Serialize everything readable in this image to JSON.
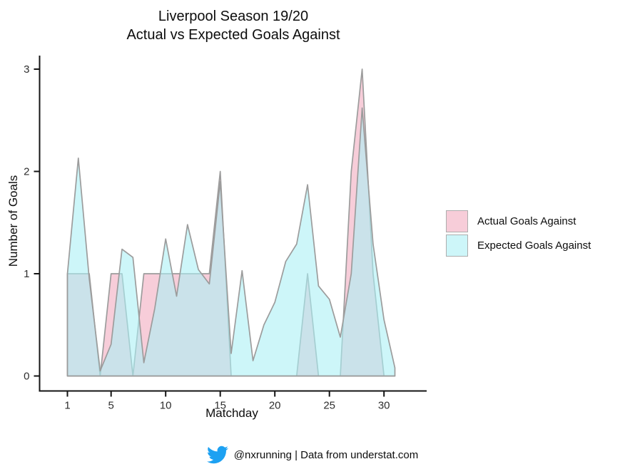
{
  "title": {
    "line1": "Liverpool Season 19/20",
    "line2": "Actual vs Expected Goals Against"
  },
  "legend": {
    "items": [
      {
        "label": "Actual Goals Against",
        "swatch_color": "#F7CDD9",
        "swatch_border": "#ADADAD"
      },
      {
        "label": "Expected Goals Against",
        "swatch_color": "#CDF6F9",
        "swatch_border": "#ADADAD"
      }
    ]
  },
  "footer": {
    "text": "@nxrunning | Data from understat.com",
    "twitter_icon_color": "#1DA1F2"
  },
  "colors": {
    "actual_fill": "#F0A4BA",
    "actual_opacity": 0.55,
    "expected_fill": "#ABF0F5",
    "expected_opacity": 0.6,
    "outline": "#9C9C9C",
    "axis_line": "#141414",
    "tick_text": "#2e2e2e"
  },
  "chart_data": {
    "type": "area",
    "title": "Liverpool Season 19/20 — Actual vs Expected Goals Against",
    "xlabel": "Matchday",
    "ylabel": "Number of Goals",
    "xlim": [
      1,
      31
    ],
    "ylim": [
      0,
      3
    ],
    "xticks": [
      1,
      5,
      10,
      15,
      20,
      25,
      30
    ],
    "yticks": [
      0,
      1,
      2,
      3
    ],
    "grid": false,
    "legend_position": "right",
    "x": [
      1,
      2,
      3,
      4,
      5,
      6,
      7,
      8,
      9,
      10,
      11,
      12,
      13,
      14,
      15,
      16,
      17,
      18,
      19,
      20,
      21,
      22,
      23,
      24,
      25,
      26,
      27,
      28,
      29,
      30,
      31
    ],
    "series": [
      {
        "name": "Actual Goals Against",
        "values": [
          1,
          1,
          1,
          0,
          1,
          1,
          0,
          1,
          1,
          1,
          1,
          1,
          1,
          1,
          2,
          0,
          0,
          0,
          0,
          0,
          0,
          0,
          1,
          0,
          0,
          0,
          2,
          3,
          1,
          0,
          0
        ]
      },
      {
        "name": "Expected Goals Against",
        "values": [
          1.0,
          2.13,
          0.95,
          0.05,
          0.31,
          1.24,
          1.16,
          0.13,
          0.66,
          1.34,
          0.78,
          1.48,
          1.04,
          0.9,
          1.9,
          0.22,
          1.03,
          0.15,
          0.5,
          0.72,
          1.12,
          1.29,
          1.87,
          0.88,
          0.75,
          0.38,
          1.0,
          2.62,
          1.29,
          0.55,
          0.08
        ]
      }
    ]
  }
}
